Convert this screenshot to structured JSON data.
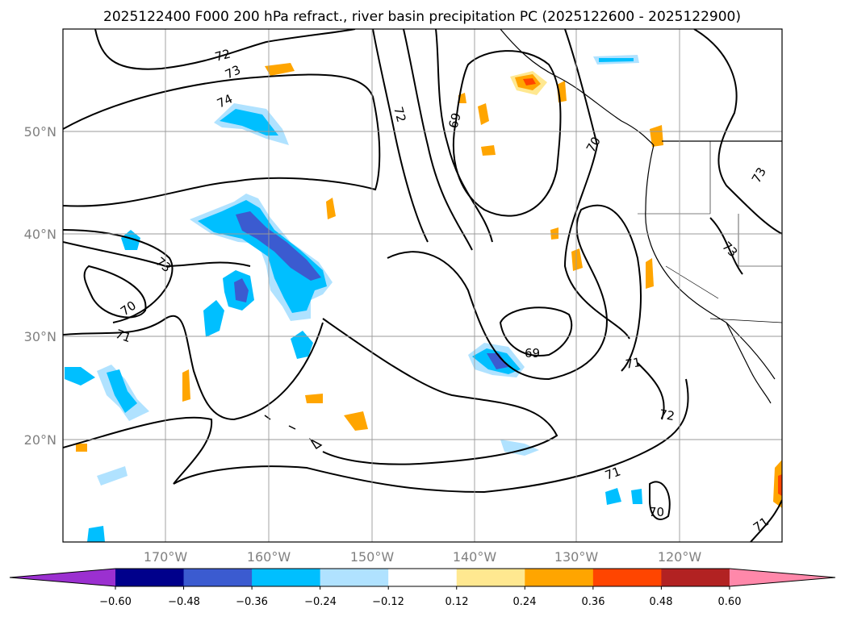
{
  "title": "2025122400 F000 200 hPa refract., river basin precipitation PC (2025122600 - 2025122900)",
  "map": {
    "lat_labels": [
      "50°N",
      "40°N",
      "30°N",
      "20°N"
    ],
    "lon_labels": [
      "170°W",
      "160°W",
      "150°W",
      "140°W",
      "130°W",
      "120°W"
    ],
    "grid": true,
    "contour_labels": [
      "72",
      "73",
      "74",
      "72",
      "69",
      "70",
      "73",
      "73",
      "70",
      "71",
      "69",
      "71",
      "72",
      "71",
      "70",
      "71",
      "73"
    ]
  },
  "colorbar": {
    "ticks": [
      "−0.60",
      "−0.48",
      "−0.36",
      "−0.24",
      "−0.12",
      "0.12",
      "0.24",
      "0.36",
      "0.48",
      "0.60"
    ],
    "colors": [
      "#9b30d0",
      "#00008b",
      "#3b5bd0",
      "#00bfff",
      "#b0e2ff",
      "#ffffff",
      "#ffe890",
      "#ffa500",
      "#ff4500",
      "#b22222",
      "#ff88aa"
    ]
  }
}
